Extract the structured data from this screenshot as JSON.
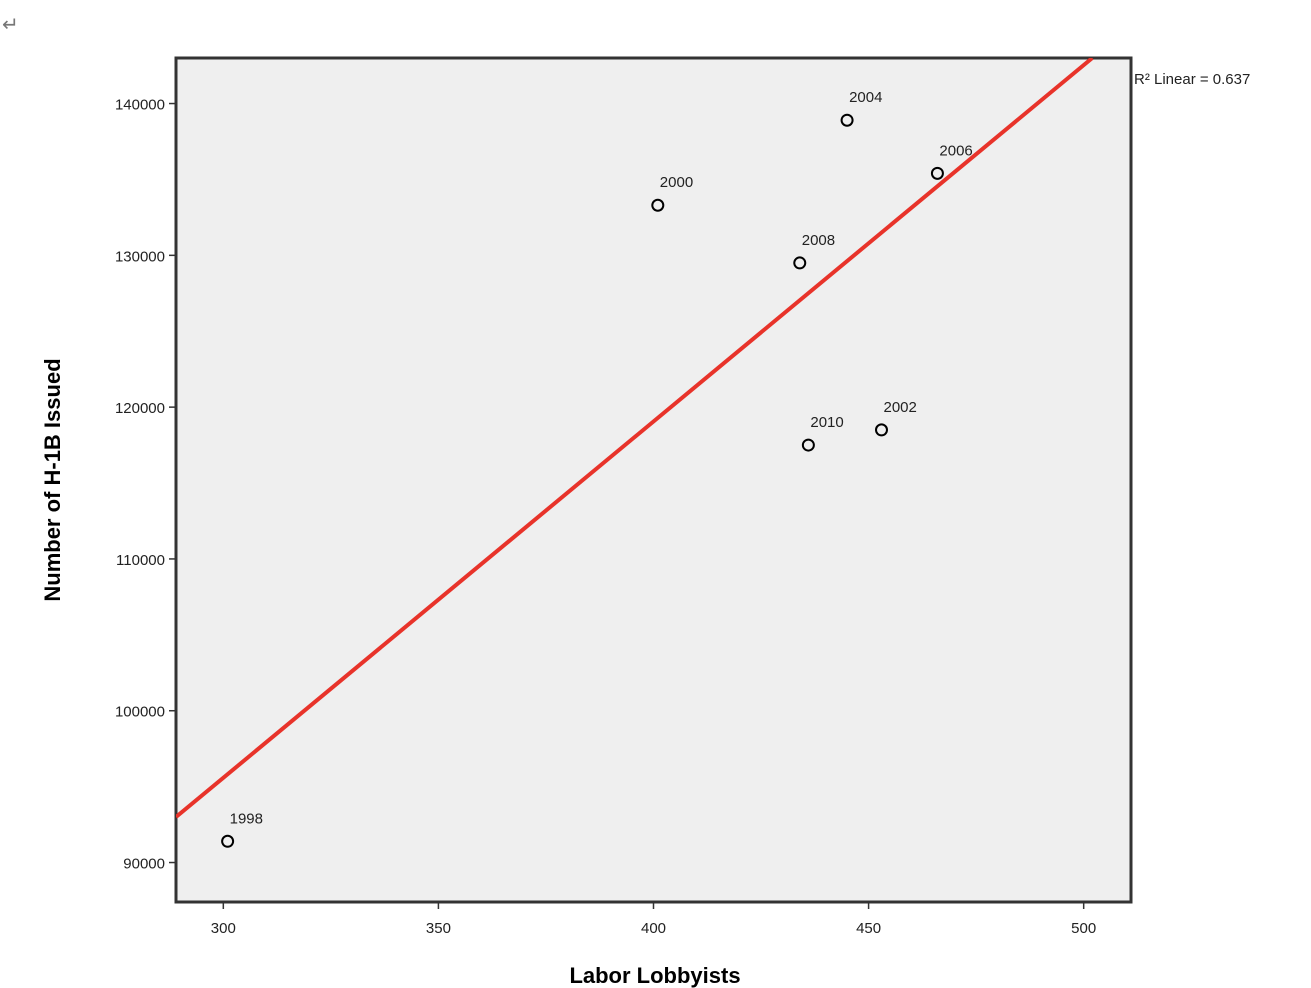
{
  "page": {
    "return_mark": "↵"
  },
  "chart_data": {
    "type": "scatter",
    "title": "",
    "xlabel": "Labor Lobbyists",
    "ylabel": "Number of H-1B Issued",
    "xlim": [
      289,
      511
    ],
    "ylim": [
      87400,
      143000
    ],
    "xticks": [
      300,
      350,
      400,
      450,
      500
    ],
    "yticks": [
      90000,
      100000,
      110000,
      120000,
      130000,
      140000
    ],
    "grid": false,
    "points": [
      {
        "x": 301,
        "y": 91400,
        "label": "1998"
      },
      {
        "x": 401,
        "y": 133300,
        "label": "2000"
      },
      {
        "x": 453,
        "y": 118500,
        "label": "2002"
      },
      {
        "x": 445,
        "y": 138900,
        "label": "2004"
      },
      {
        "x": 466,
        "y": 135400,
        "label": "2006"
      },
      {
        "x": 434,
        "y": 129500,
        "label": "2008"
      },
      {
        "x": 436,
        "y": 117500,
        "label": "2010"
      }
    ],
    "fit_line": {
      "type": "linear",
      "x": [
        289,
        502
      ],
      "y": [
        93000,
        143000
      ],
      "color": "#e8332a"
    },
    "r2_label": "R² Linear = 0.637",
    "colors": {
      "plot_background": "#efefef",
      "axis": "#333333",
      "marker": "#000000"
    }
  }
}
